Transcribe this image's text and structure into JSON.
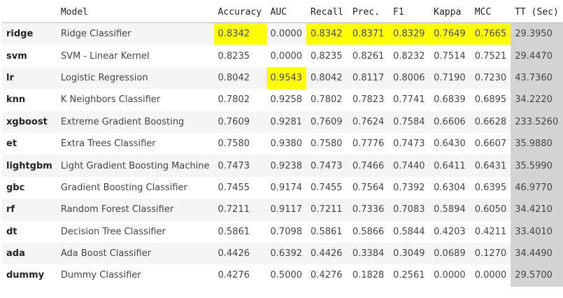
{
  "table": {
    "columns": [
      "",
      "Model",
      "Accuracy",
      "AUC",
      "Recall",
      "Prec.",
      "F1",
      "Kappa",
      "MCC",
      "TT (Sec)"
    ],
    "rows": [
      {
        "index": "ridge",
        "cells": [
          "Ridge Classifier",
          "0.8342",
          "0.0000",
          "0.8342",
          "0.8371",
          "0.8329",
          "0.7649",
          "0.7665",
          "29.3950"
        ]
      },
      {
        "index": "svm",
        "cells": [
          "SVM - Linear Kernel",
          "0.8235",
          "0.0000",
          "0.8235",
          "0.8261",
          "0.8232",
          "0.7514",
          "0.7521",
          "29.4470"
        ]
      },
      {
        "index": "lr",
        "cells": [
          "Logistic Regression",
          "0.8042",
          "0.9543",
          "0.8042",
          "0.8117",
          "0.8006",
          "0.7190",
          "0.7230",
          "43.7360"
        ]
      },
      {
        "index": "knn",
        "cells": [
          "K Neighbors Classifier",
          "0.7802",
          "0.9258",
          "0.7802",
          "0.7823",
          "0.7741",
          "0.6839",
          "0.6895",
          "34.2220"
        ]
      },
      {
        "index": "xgboost",
        "cells": [
          "Extreme Gradient Boosting",
          "0.7609",
          "0.9281",
          "0.7609",
          "0.7624",
          "0.7584",
          "0.6606",
          "0.6628",
          "233.5260"
        ]
      },
      {
        "index": "et",
        "cells": [
          "Extra Trees Classifier",
          "0.7580",
          "0.9380",
          "0.7580",
          "0.7776",
          "0.7473",
          "0.6430",
          "0.6607",
          "35.9880"
        ]
      },
      {
        "index": "lightgbm",
        "cells": [
          "Light Gradient Boosting Machine",
          "0.7473",
          "0.9238",
          "0.7473",
          "0.7466",
          "0.7440",
          "0.6411",
          "0.6431",
          "35.5990"
        ]
      },
      {
        "index": "gbc",
        "cells": [
          "Gradient Boosting Classifier",
          "0.7455",
          "0.9174",
          "0.7455",
          "0.7564",
          "0.7392",
          "0.6304",
          "0.6395",
          "46.9770"
        ]
      },
      {
        "index": "rf",
        "cells": [
          "Random Forest Classifier",
          "0.7211",
          "0.9117",
          "0.7211",
          "0.7336",
          "0.7083",
          "0.5894",
          "0.6050",
          "34.4210"
        ]
      },
      {
        "index": "dt",
        "cells": [
          "Decision Tree Classifier",
          "0.5861",
          "0.7098",
          "0.5861",
          "0.5866",
          "0.5844",
          "0.4203",
          "0.4211",
          "33.4010"
        ]
      },
      {
        "index": "ada",
        "cells": [
          "Ada Boost Classifier",
          "0.4426",
          "0.6392",
          "0.4426",
          "0.3384",
          "0.3049",
          "0.0689",
          "0.1270",
          "34.4490"
        ]
      },
      {
        "index": "dummy",
        "cells": [
          "Dummy Classifier",
          "0.4276",
          "0.5000",
          "0.4276",
          "0.1828",
          "0.2561",
          "0.0000",
          "0.0000",
          "29.5700"
        ]
      }
    ],
    "highlight_color": "#ffff00",
    "tt_column_color": "#d3d3d3",
    "best_row_by_column": {
      "Accuracy": "ridge",
      "AUC": "lr",
      "Recall": "ridge",
      "Prec.": "ridge",
      "F1": "ridge",
      "Kappa": "ridge",
      "MCC": "ridge"
    }
  }
}
